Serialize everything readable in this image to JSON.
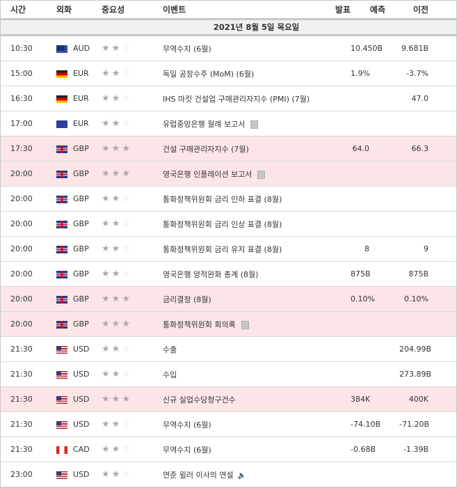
{
  "header": {
    "time": "시간",
    "currency": "외화",
    "importance": "중요성",
    "event": "이벤트",
    "actual": "발표",
    "forecast": "예측",
    "previous": "이전"
  },
  "date": "2021년 8월 5일 목요일",
  "colors": {
    "highlight": "#fbe5e6",
    "date_bg": "#f1f1f1"
  },
  "rows": [
    {
      "time": "10:30",
      "flag": "australia",
      "currency": "AUD",
      "stars": 2,
      "event": "무역수지 (6월)",
      "actual": "",
      "forecast": "10.450B",
      "previous": "9.681B",
      "hi": false
    },
    {
      "time": "15:00",
      "flag": "germany",
      "currency": "EUR",
      "stars": 2,
      "event": "독일 공장수주 (MoM) (6월)",
      "actual": "",
      "forecast": "1.9%",
      "previous": "-3.7%",
      "hi": false
    },
    {
      "time": "16:30",
      "flag": "germany",
      "currency": "EUR",
      "stars": 2,
      "event": "IHS 마킷 건설업 구매관리자지수 (PMI) (7월)",
      "actual": "",
      "forecast": "",
      "previous": "47.0",
      "hi": false
    },
    {
      "time": "17:00",
      "flag": "eu",
      "currency": "EUR",
      "stars": 2,
      "event": "유럽중앙은행 월례 보고서",
      "icon": "report-icon",
      "actual": "",
      "forecast": "",
      "previous": "",
      "hi": false
    },
    {
      "time": "17:30",
      "flag": "uk",
      "currency": "GBP",
      "stars": 3,
      "event": "건설 구매관리자지수 (7월)",
      "actual": "",
      "forecast": "64.0",
      "previous": "66.3",
      "hi": true
    },
    {
      "time": "20:00",
      "flag": "uk",
      "currency": "GBP",
      "stars": 3,
      "event": "영국은행 인플레이션 보고서",
      "icon": "report-icon",
      "actual": "",
      "forecast": "",
      "previous": "",
      "hi": true
    },
    {
      "time": "20:00",
      "flag": "uk",
      "currency": "GBP",
      "stars": 2,
      "event": "통화정책위원회 금리 인하 표결 (8월)",
      "actual": "",
      "forecast": "",
      "previous": "",
      "hi": false
    },
    {
      "time": "20:00",
      "flag": "uk",
      "currency": "GBP",
      "stars": 2,
      "event": "통화정책위원회 금리 인상 표결 (8월)",
      "actual": "",
      "forecast": "",
      "previous": "",
      "hi": false
    },
    {
      "time": "20:00",
      "flag": "uk",
      "currency": "GBP",
      "stars": 2,
      "event": "통화정책위원회 금리 유지 표결 (8월)",
      "actual": "",
      "forecast": "8",
      "previous": "9",
      "hi": false
    },
    {
      "time": "20:00",
      "flag": "uk",
      "currency": "GBP",
      "stars": 2,
      "event": "영국은행 양적완화 총계 (8월)",
      "actual": "",
      "forecast": "875B",
      "previous": "875B",
      "hi": false
    },
    {
      "time": "20:00",
      "flag": "uk",
      "currency": "GBP",
      "stars": 3,
      "event": "금리결정 (8월)",
      "actual": "",
      "forecast": "0.10%",
      "previous": "0.10%",
      "hi": true
    },
    {
      "time": "20:00",
      "flag": "uk",
      "currency": "GBP",
      "stars": 3,
      "event": "통화정책위원회 회의록",
      "icon": "report-icon",
      "actual": "",
      "forecast": "",
      "previous": "",
      "hi": true
    },
    {
      "time": "21:30",
      "flag": "us",
      "currency": "USD",
      "stars": 2,
      "event": "수출",
      "actual": "",
      "forecast": "",
      "previous": "204.99B",
      "hi": false
    },
    {
      "time": "21:30",
      "flag": "us",
      "currency": "USD",
      "stars": 2,
      "event": "수입",
      "actual": "",
      "forecast": "",
      "previous": "273.89B",
      "hi": false
    },
    {
      "time": "21:30",
      "flag": "us",
      "currency": "USD",
      "stars": 3,
      "event": "신규 실업수당청구건수",
      "actual": "",
      "forecast": "384K",
      "previous": "400K",
      "hi": true
    },
    {
      "time": "21:30",
      "flag": "us",
      "currency": "USD",
      "stars": 2,
      "event": "무역수지 (6월)",
      "actual": "",
      "forecast": "-74.10B",
      "previous": "-71.20B",
      "hi": false
    },
    {
      "time": "21:30",
      "flag": "canada",
      "currency": "CAD",
      "stars": 2,
      "event": "무역수지 (6월)",
      "actual": "",
      "forecast": "-0.68B",
      "previous": "-1.39B",
      "hi": false
    },
    {
      "time": "23:00",
      "flag": "us",
      "currency": "USD",
      "stars": 2,
      "event": "연준 윌러 이사의 연설",
      "icon": "speaker-icon",
      "actual": "",
      "forecast": "",
      "previous": "",
      "hi": false
    }
  ]
}
